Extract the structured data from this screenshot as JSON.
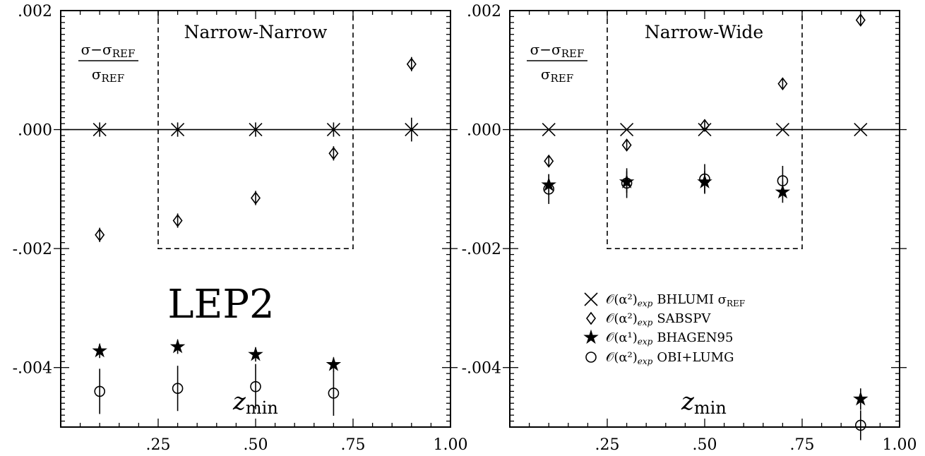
{
  "chart_data": [
    {
      "type": "scatter",
      "title": "Narrow-Narrow",
      "annotation": "LEP2",
      "xlabel_main": "z",
      "xlabel_sub": "min",
      "ylabel": {
        "num_sigma": "σ−σ",
        "num_sub": "REF",
        "den_sigma": "σ",
        "den_sub": "REF"
      },
      "xlim": [
        0.0,
        1.0
      ],
      "ylim": [
        -0.005,
        0.002
      ],
      "xticks": [
        0.25,
        0.5,
        0.75,
        1.0
      ],
      "xtick_labels": [
        ".25",
        ".50",
        ".75",
        "1.00"
      ],
      "yticks": [
        0.002,
        0.0,
        -0.002,
        -0.004
      ],
      "ytick_labels": [
        ".002",
        ".000",
        "-.002",
        "-.004"
      ],
      "grid": false,
      "reference_line_y": 0.0,
      "dashed_box": {
        "x": [
          0.25,
          0.75
        ],
        "y": [
          -0.002,
          0.002
        ]
      },
      "series": [
        {
          "marker": "cross",
          "x": [
            0.1,
            0.3,
            0.5,
            0.7,
            0.9
          ],
          "y": [
            0.0,
            0.0,
            0.0,
            0.0,
            0.0
          ],
          "err": [
            0.00012,
            0.00012,
            0.00012,
            0.00012,
            0.0002
          ]
        },
        {
          "marker": "diamond",
          "x": [
            0.1,
            0.3,
            0.5,
            0.7,
            0.9
          ],
          "y": [
            -0.00177,
            -0.00153,
            -0.00115,
            -0.0004,
            0.0011
          ],
          "err": [
            0.00012,
            0.00012,
            0.00012,
            0.00012,
            0.00012
          ]
        },
        {
          "marker": "star",
          "x": [
            0.1,
            0.3,
            0.5,
            0.7
          ],
          "y": [
            -0.00372,
            -0.00365,
            -0.00378,
            -0.00395
          ],
          "err": [
            0.00012,
            0.00012,
            0.00012,
            0.00012
          ]
        },
        {
          "marker": "circle",
          "x": [
            0.1,
            0.3,
            0.5,
            0.7
          ],
          "y": [
            -0.0044,
            -0.00435,
            -0.00432,
            -0.00443
          ],
          "err": [
            0.00038,
            0.00038,
            0.00038,
            0.00038
          ]
        }
      ]
    },
    {
      "type": "scatter",
      "title": "Narrow-Wide",
      "xlabel_main": "z",
      "xlabel_sub": "min",
      "ylabel": {
        "num_sigma": "σ−σ",
        "num_sub": "REF",
        "den_sigma": "σ",
        "den_sub": "REF"
      },
      "xlim": [
        0.0,
        1.0
      ],
      "ylim": [
        -0.005,
        0.002
      ],
      "xticks": [
        0.25,
        0.5,
        0.75,
        1.0
      ],
      "xtick_labels": [
        ".25",
        ".50",
        ".75",
        "1.00"
      ],
      "yticks": [
        0.002,
        0.0,
        -0.002,
        -0.004
      ],
      "ytick_labels": [
        ".002",
        ".000",
        "-.002",
        "-.004"
      ],
      "grid": false,
      "reference_line_y": 0.0,
      "dashed_box": {
        "x": [
          0.25,
          0.75
        ],
        "y": [
          -0.002,
          0.002
        ]
      },
      "legend": {
        "placement": "lower-center",
        "entries": [
          {
            "marker": "cross",
            "math": "𝒪(α²)",
            "sub": "exp",
            "label": "BHLUMI σ",
            "label_sub": "REF"
          },
          {
            "marker": "diamond",
            "math": "𝒪(α²)",
            "sub": "exp",
            "label": "SABSPV",
            "label_sub": ""
          },
          {
            "marker": "star",
            "math": "𝒪(α¹)",
            "sub": "exp",
            "label": "BHAGEN95",
            "label_sub": ""
          },
          {
            "marker": "circle",
            "math": "𝒪(α²)",
            "sub": "exp",
            "label": "OBI+LUMG",
            "label_sub": ""
          }
        ]
      },
      "series": [
        {
          "marker": "cross",
          "x": [
            0.1,
            0.3,
            0.5,
            0.7,
            0.9
          ],
          "y": [
            0.0,
            0.0,
            0.0,
            0.0,
            0.0
          ],
          "err": [
            0.0,
            0.0,
            0.0,
            0.0,
            0.0
          ]
        },
        {
          "marker": "diamond",
          "x": [
            0.1,
            0.3,
            0.5,
            0.7,
            0.9
          ],
          "y": [
            -0.00053,
            -0.00026,
            7e-05,
            0.00077,
            0.00184
          ],
          "err": [
            0.0001,
            0.0001,
            0.0001,
            0.0001,
            0.0001
          ]
        },
        {
          "marker": "star",
          "x": [
            0.1,
            0.3,
            0.5,
            0.7,
            0.9
          ],
          "y": [
            -0.00093,
            -0.00088,
            -0.00088,
            -0.00105,
            -0.00453
          ],
          "err": [
            0.00018,
            0.00018,
            0.00018,
            0.00018,
            0.00018
          ]
        },
        {
          "marker": "circle",
          "x": [
            0.1,
            0.3,
            0.5,
            0.7,
            0.9
          ],
          "y": [
            -0.001,
            -0.0009,
            -0.00083,
            -0.00086,
            -0.00497
          ],
          "err": [
            0.00025,
            0.00025,
            0.00025,
            0.00025,
            0.00025
          ]
        }
      ]
    }
  ]
}
